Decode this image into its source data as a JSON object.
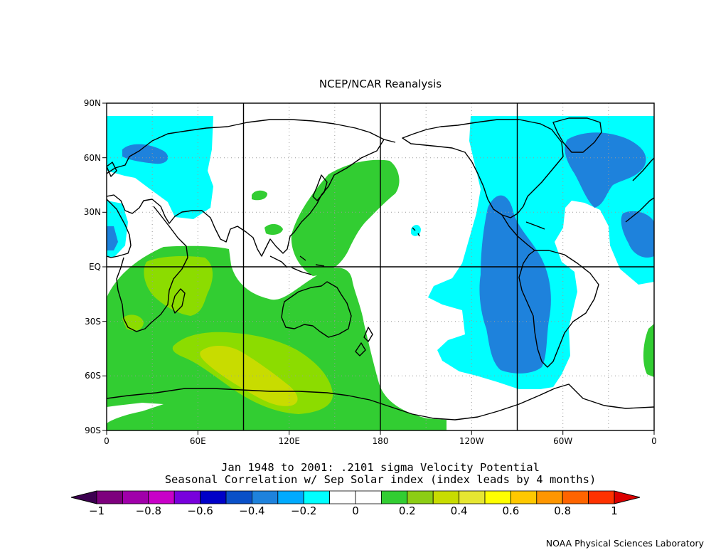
{
  "title": "NCEP/NCAR Reanalysis",
  "caption_line1": "Jan 1948 to 2001: .2101 sigma Velocity Potential",
  "caption_line2": "Seasonal Correlation w/ Sep Solar index (index leads by 4 months)",
  "credit": "NOAA Physical Sciences Laboratory",
  "lat_labels": [
    "90N",
    "60N",
    "30N",
    "EQ",
    "30S",
    "60S",
    "90S"
  ],
  "lon_labels": [
    "0",
    "60E",
    "120E",
    "180",
    "120W",
    "60W",
    "0"
  ],
  "colorbar": {
    "labels": [
      "−1",
      "−0.8",
      "−0.6",
      "−0.4",
      "−0.2",
      "0",
      "0.2",
      "0.4",
      "0.6",
      "0.8",
      "1"
    ],
    "colors": [
      "#3c0050",
      "#7d007d",
      "#a000aa",
      "#c800c8",
      "#7800dc",
      "#0000c8",
      "#0a50c8",
      "#1e82dc",
      "#00aaff",
      "#00ffff",
      "#ffffff",
      "#ffffff",
      "#32cd32",
      "#8ccd14",
      "#c8dc00",
      "#e6e632",
      "#ffff00",
      "#ffc800",
      "#ff9600",
      "#ff6400",
      "#ff3200",
      "#dc0000"
    ]
  },
  "field_colors": {
    "cyan": "#00ffff",
    "blue": "#1e82dc",
    "green": "#32cd32",
    "lime": "#8cdc00",
    "yellowgreen": "#c8dc00"
  }
}
